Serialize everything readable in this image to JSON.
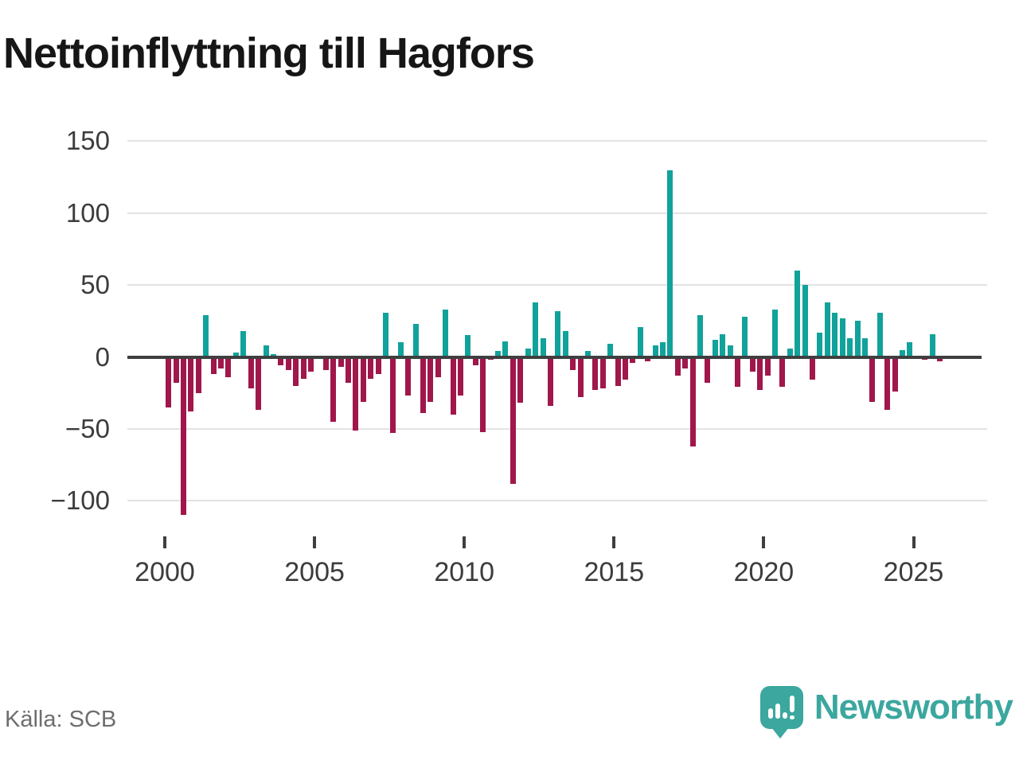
{
  "title": "Nettoinflyttning till Hagfors",
  "source": "Källa: SCB",
  "brand": {
    "name": "Newsworthy"
  },
  "colors": {
    "positive": "#11a29b",
    "negative": "#a0174b",
    "baseline": "#3f3f3f",
    "gridline": "#e3e3e3",
    "title_text": "#161616",
    "axis_text": "#3c3c3c",
    "source_text": "#6e6e6e",
    "brand_teal": "#3ba79e"
  },
  "chart_data": {
    "type": "bar",
    "title": "Nettoinflyttning till Hagfors",
    "xlabel": "",
    "ylabel": "",
    "frequency": "quarterly",
    "start_year": 2000,
    "ylim": [
      -125,
      160
    ],
    "y_ticks": [
      150,
      100,
      50,
      0,
      -50,
      -100
    ],
    "x_tick_labels": [
      "2000",
      "2005",
      "2010",
      "2015",
      "2020",
      "2025"
    ],
    "legend": "none",
    "grid": "horizontal",
    "values": [
      -35,
      -18,
      -110,
      -38,
      -25,
      29,
      -12,
      -8,
      -14,
      3,
      18,
      -22,
      -37,
      8,
      2,
      -6,
      -9,
      -20,
      -15,
      -10,
      0,
      -9,
      -45,
      -7,
      -18,
      -51,
      -31,
      -15,
      -12,
      31,
      -53,
      10,
      -27,
      23,
      -39,
      -31,
      -14,
      33,
      -40,
      -27,
      15,
      -6,
      -52,
      -2,
      4,
      11,
      -88,
      -32,
      6,
      38,
      13,
      -34,
      32,
      18,
      -9,
      -28,
      4,
      -23,
      -22,
      9,
      -20,
      -16,
      -4,
      21,
      -3,
      8,
      10,
      130,
      -13,
      -8,
      -62,
      29,
      -18,
      12,
      16,
      8,
      -21,
      28,
      -10,
      -23,
      -13,
      33,
      -21,
      6,
      60,
      50,
      -16,
      17,
      38,
      31,
      27,
      13,
      25,
      13,
      -31,
      31,
      -37,
      -24,
      5,
      10,
      0,
      -2,
      16,
      -3
    ]
  }
}
